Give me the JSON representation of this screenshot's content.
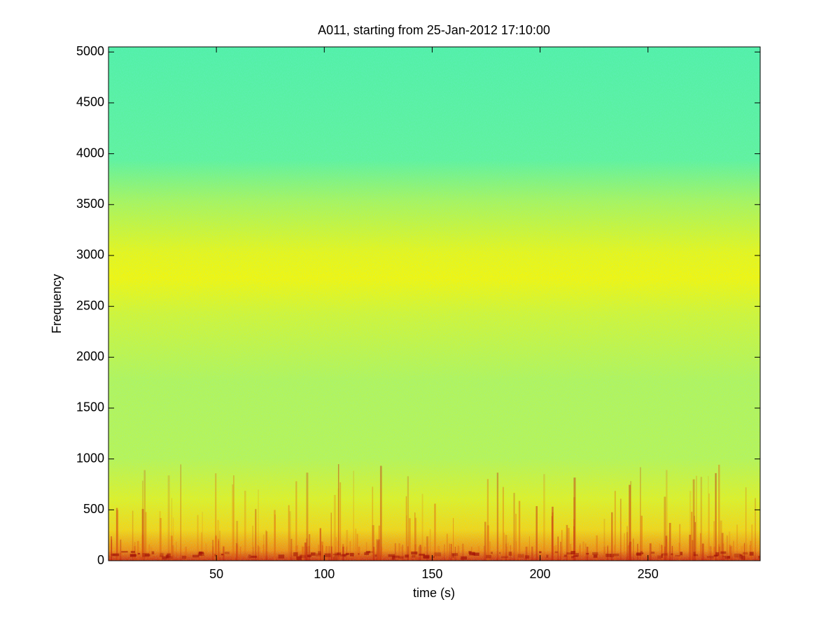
{
  "chart_data": {
    "type": "spectrogram",
    "title": "A011, starting from 25-Jan-2012 17:10:00",
    "xlabel": "time (s)",
    "ylabel": "Frequency",
    "xlim": [
      0,
      302
    ],
    "ylim": [
      0,
      5050
    ],
    "xticks": [
      50,
      100,
      150,
      200,
      250
    ],
    "yticks": [
      0,
      500,
      1000,
      1500,
      2000,
      2500,
      3000,
      3500,
      4000,
      4500,
      5000
    ]
  }
}
